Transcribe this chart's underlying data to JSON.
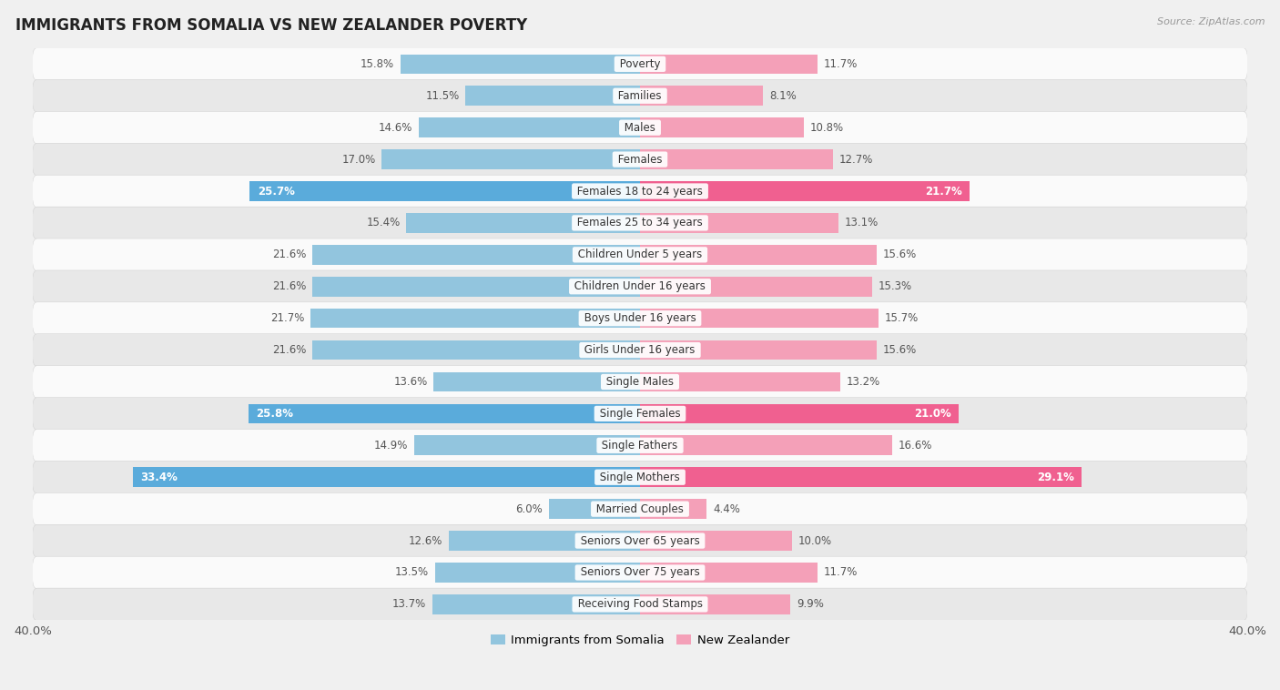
{
  "title": "IMMIGRANTS FROM SOMALIA VS NEW ZEALANDER POVERTY",
  "source": "Source: ZipAtlas.com",
  "categories": [
    "Poverty",
    "Families",
    "Males",
    "Females",
    "Females 18 to 24 years",
    "Females 25 to 34 years",
    "Children Under 5 years",
    "Children Under 16 years",
    "Boys Under 16 years",
    "Girls Under 16 years",
    "Single Males",
    "Single Females",
    "Single Fathers",
    "Single Mothers",
    "Married Couples",
    "Seniors Over 65 years",
    "Seniors Over 75 years",
    "Receiving Food Stamps"
  ],
  "somalia_values": [
    15.8,
    11.5,
    14.6,
    17.0,
    25.7,
    15.4,
    21.6,
    21.6,
    21.7,
    21.6,
    13.6,
    25.8,
    14.9,
    33.4,
    6.0,
    12.6,
    13.5,
    13.7
  ],
  "nz_values": [
    11.7,
    8.1,
    10.8,
    12.7,
    21.7,
    13.1,
    15.6,
    15.3,
    15.7,
    15.6,
    13.2,
    21.0,
    16.6,
    29.1,
    4.4,
    10.0,
    11.7,
    9.9
  ],
  "somalia_color": "#92c5de",
  "nz_color": "#f4a0b8",
  "somalia_highlight_color": "#5aabdb",
  "nz_highlight_color": "#f06090",
  "background_color": "#f0f0f0",
  "row_color_odd": "#fafafa",
  "row_color_even": "#e8e8e8",
  "xlim": 40.0,
  "legend_somalia": "Immigrants from Somalia",
  "legend_nz": "New Zealander",
  "highlight_rows": [
    4,
    11,
    13
  ],
  "label_fontsize": 8.5,
  "category_fontsize": 8.5,
  "title_fontsize": 12,
  "source_fontsize": 8
}
